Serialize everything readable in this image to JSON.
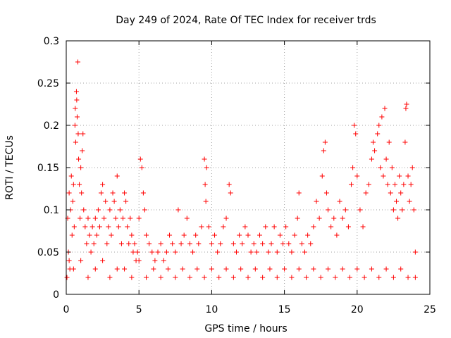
{
  "chart_data": {
    "type": "scatter",
    "title": "Day 249 of 2024, Rate Of TEC Index for receiver trds",
    "xlabel": "GPS time / hours",
    "ylabel": "ROTI / TECUs",
    "xlim": [
      0,
      25
    ],
    "ylim": [
      0,
      0.3
    ],
    "xticks": [
      0,
      5,
      10,
      15,
      20,
      25
    ],
    "yticks": [
      0,
      0.05,
      0.1,
      0.15,
      0.2,
      0.25,
      0.3
    ],
    "xtick_labels": [
      "0",
      "5",
      "10",
      "15",
      "20",
      "25"
    ],
    "ytick_labels": [
      "0",
      "0.05",
      "0.1",
      "0.15",
      "0.2",
      "0.25",
      "0.3"
    ],
    "grid": true,
    "marker": "plus",
    "color": "#ff0000",
    "series": [
      {
        "points": [
          [
            0.05,
            0.02
          ],
          [
            0.1,
            0.09
          ],
          [
            0.15,
            0.05
          ],
          [
            0.2,
            0.12
          ],
          [
            0.25,
            0.03
          ],
          [
            0.3,
            0.1
          ],
          [
            0.35,
            0.14
          ],
          [
            0.4,
            0.07
          ],
          [
            0.45,
            0.11
          ],
          [
            0.5,
            0.13
          ],
          [
            0.55,
            0.08
          ],
          [
            0.6,
            0.2
          ],
          [
            0.62,
            0.22
          ],
          [
            0.65,
            0.18
          ],
          [
            0.7,
            0.24
          ],
          [
            0.72,
            0.23
          ],
          [
            0.75,
            0.21
          ],
          [
            0.8,
            0.275
          ],
          [
            0.82,
            0.19
          ],
          [
            0.85,
            0.16
          ],
          [
            0.9,
            0.13
          ],
          [
            0.95,
            0.09
          ],
          [
            1.0,
            0.15
          ],
          [
            1.05,
            0.12
          ],
          [
            1.1,
            0.17
          ],
          [
            1.15,
            0.19
          ],
          [
            1.2,
            0.1
          ],
          [
            1.3,
            0.08
          ],
          [
            1.4,
            0.06
          ],
          [
            1.5,
            0.09
          ],
          [
            1.6,
            0.07
          ],
          [
            1.7,
            0.05
          ],
          [
            1.8,
            0.08
          ],
          [
            1.9,
            0.06
          ],
          [
            2.0,
            0.09
          ],
          [
            2.1,
            0.07
          ],
          [
            2.2,
            0.1
          ],
          [
            2.3,
            0.08
          ],
          [
            2.4,
            0.12
          ],
          [
            2.5,
            0.13
          ],
          [
            2.6,
            0.09
          ],
          [
            2.7,
            0.11
          ],
          [
            2.8,
            0.06
          ],
          [
            2.9,
            0.08
          ],
          [
            3.0,
            0.1
          ],
          [
            3.1,
            0.07
          ],
          [
            3.2,
            0.12
          ],
          [
            3.3,
            0.11
          ],
          [
            3.4,
            0.09
          ],
          [
            3.5,
            0.14
          ],
          [
            3.6,
            0.08
          ],
          [
            3.7,
            0.1
          ],
          [
            3.8,
            0.06
          ],
          [
            3.9,
            0.09
          ],
          [
            4.0,
            0.12
          ],
          [
            4.1,
            0.11
          ],
          [
            4.2,
            0.08
          ],
          [
            4.3,
            0.06
          ],
          [
            4.4,
            0.09
          ],
          [
            4.5,
            0.07
          ],
          [
            4.6,
            0.05
          ],
          [
            4.7,
            0.06
          ],
          [
            4.8,
            0.04
          ],
          [
            4.9,
            0.05
          ],
          [
            5.0,
            0.09
          ],
          [
            5.1,
            0.16
          ],
          [
            5.2,
            0.15
          ],
          [
            5.3,
            0.12
          ],
          [
            5.4,
            0.1
          ],
          [
            5.5,
            0.07
          ],
          [
            5.7,
            0.06
          ],
          [
            5.9,
            0.05
          ],
          [
            6.1,
            0.04
          ],
          [
            6.3,
            0.05
          ],
          [
            6.5,
            0.06
          ],
          [
            6.7,
            0.04
          ],
          [
            6.9,
            0.05
          ],
          [
            7.1,
            0.07
          ],
          [
            7.3,
            0.06
          ],
          [
            7.5,
            0.05
          ],
          [
            7.7,
            0.1
          ],
          [
            7.9,
            0.06
          ],
          [
            8.1,
            0.07
          ],
          [
            8.3,
            0.09
          ],
          [
            8.5,
            0.06
          ],
          [
            8.7,
            0.05
          ],
          [
            8.9,
            0.07
          ],
          [
            9.1,
            0.06
          ],
          [
            9.3,
            0.08
          ],
          [
            9.5,
            0.16
          ],
          [
            9.55,
            0.13
          ],
          [
            9.6,
            0.11
          ],
          [
            9.65,
            0.15
          ],
          [
            9.8,
            0.08
          ],
          [
            10.0,
            0.06
          ],
          [
            10.2,
            0.07
          ],
          [
            10.4,
            0.05
          ],
          [
            10.6,
            0.06
          ],
          [
            10.8,
            0.08
          ],
          [
            11.0,
            0.09
          ],
          [
            11.2,
            0.13
          ],
          [
            11.3,
            0.12
          ],
          [
            11.5,
            0.06
          ],
          [
            11.7,
            0.05
          ],
          [
            11.9,
            0.07
          ],
          [
            12.1,
            0.06
          ],
          [
            12.3,
            0.08
          ],
          [
            12.5,
            0.07
          ],
          [
            12.7,
            0.05
          ],
          [
            12.9,
            0.06
          ],
          [
            13.1,
            0.05
          ],
          [
            13.3,
            0.07
          ],
          [
            13.5,
            0.06
          ],
          [
            13.7,
            0.08
          ],
          [
            13.9,
            0.05
          ],
          [
            14.1,
            0.06
          ],
          [
            14.3,
            0.08
          ],
          [
            14.5,
            0.05
          ],
          [
            14.7,
            0.07
          ],
          [
            14.9,
            0.06
          ],
          [
            15.1,
            0.08
          ],
          [
            15.3,
            0.06
          ],
          [
            15.5,
            0.05
          ],
          [
            15.7,
            0.07
          ],
          [
            15.9,
            0.09
          ],
          [
            16.0,
            0.12
          ],
          [
            16.2,
            0.06
          ],
          [
            16.4,
            0.05
          ],
          [
            16.6,
            0.07
          ],
          [
            16.8,
            0.06
          ],
          [
            17.0,
            0.08
          ],
          [
            17.2,
            0.11
          ],
          [
            17.4,
            0.09
          ],
          [
            17.6,
            0.14
          ],
          [
            17.7,
            0.17
          ],
          [
            17.8,
            0.18
          ],
          [
            17.9,
            0.12
          ],
          [
            18.0,
            0.1
          ],
          [
            18.2,
            0.08
          ],
          [
            18.4,
            0.09
          ],
          [
            18.6,
            0.07
          ],
          [
            18.8,
            0.11
          ],
          [
            19.0,
            0.09
          ],
          [
            19.2,
            0.1
          ],
          [
            19.4,
            0.08
          ],
          [
            19.6,
            0.13
          ],
          [
            19.7,
            0.15
          ],
          [
            19.8,
            0.2
          ],
          [
            19.9,
            0.19
          ],
          [
            20.0,
            0.14
          ],
          [
            20.2,
            0.1
          ],
          [
            20.4,
            0.08
          ],
          [
            20.6,
            0.12
          ],
          [
            20.8,
            0.13
          ],
          [
            21.0,
            0.16
          ],
          [
            21.1,
            0.18
          ],
          [
            21.2,
            0.17
          ],
          [
            21.4,
            0.19
          ],
          [
            21.5,
            0.2
          ],
          [
            21.6,
            0.15
          ],
          [
            21.7,
            0.21
          ],
          [
            21.8,
            0.14
          ],
          [
            21.9,
            0.22
          ],
          [
            22.0,
            0.16
          ],
          [
            22.1,
            0.13
          ],
          [
            22.2,
            0.18
          ],
          [
            22.3,
            0.12
          ],
          [
            22.4,
            0.15
          ],
          [
            22.5,
            0.1
          ],
          [
            22.6,
            0.13
          ],
          [
            22.7,
            0.11
          ],
          [
            22.8,
            0.09
          ],
          [
            22.9,
            0.14
          ],
          [
            23.0,
            0.12
          ],
          [
            23.1,
            0.1
          ],
          [
            23.2,
            0.13
          ],
          [
            23.3,
            0.18
          ],
          [
            23.35,
            0.22
          ],
          [
            23.4,
            0.225
          ],
          [
            23.5,
            0.14
          ],
          [
            23.6,
            0.11
          ],
          [
            23.7,
            0.13
          ],
          [
            23.8,
            0.15
          ],
          [
            23.9,
            0.1
          ],
          [
            24.0,
            0.05
          ],
          [
            0.2,
            0.04
          ],
          [
            0.5,
            0.03
          ],
          [
            1.0,
            0.04
          ],
          [
            1.5,
            0.02
          ],
          [
            2.0,
            0.03
          ],
          [
            2.5,
            0.04
          ],
          [
            3.0,
            0.02
          ],
          [
            3.5,
            0.03
          ],
          [
            4.0,
            0.03
          ],
          [
            4.5,
            0.02
          ],
          [
            5.0,
            0.04
          ],
          [
            5.5,
            0.02
          ],
          [
            6.0,
            0.03
          ],
          [
            6.5,
            0.02
          ],
          [
            7.0,
            0.03
          ],
          [
            7.5,
            0.02
          ],
          [
            8.0,
            0.03
          ],
          [
            8.5,
            0.02
          ],
          [
            9.0,
            0.03
          ],
          [
            9.5,
            0.02
          ],
          [
            10.0,
            0.03
          ],
          [
            10.5,
            0.02
          ],
          [
            11.0,
            0.03
          ],
          [
            11.5,
            0.02
          ],
          [
            12.0,
            0.03
          ],
          [
            12.5,
            0.02
          ],
          [
            13.0,
            0.03
          ],
          [
            13.5,
            0.02
          ],
          [
            14.0,
            0.03
          ],
          [
            14.5,
            0.02
          ],
          [
            15.0,
            0.03
          ],
          [
            15.5,
            0.02
          ],
          [
            16.0,
            0.03
          ],
          [
            16.5,
            0.02
          ],
          [
            17.0,
            0.03
          ],
          [
            17.5,
            0.02
          ],
          [
            18.0,
            0.03
          ],
          [
            18.5,
            0.02
          ],
          [
            19.0,
            0.03
          ],
          [
            19.5,
            0.02
          ],
          [
            20.0,
            0.03
          ],
          [
            20.5,
            0.02
          ],
          [
            21.0,
            0.03
          ],
          [
            21.5,
            0.02
          ],
          [
            22.0,
            0.03
          ],
          [
            22.5,
            0.02
          ],
          [
            23.0,
            0.03
          ],
          [
            23.5,
            0.02
          ],
          [
            24.0,
            0.02
          ]
        ]
      }
    ]
  }
}
